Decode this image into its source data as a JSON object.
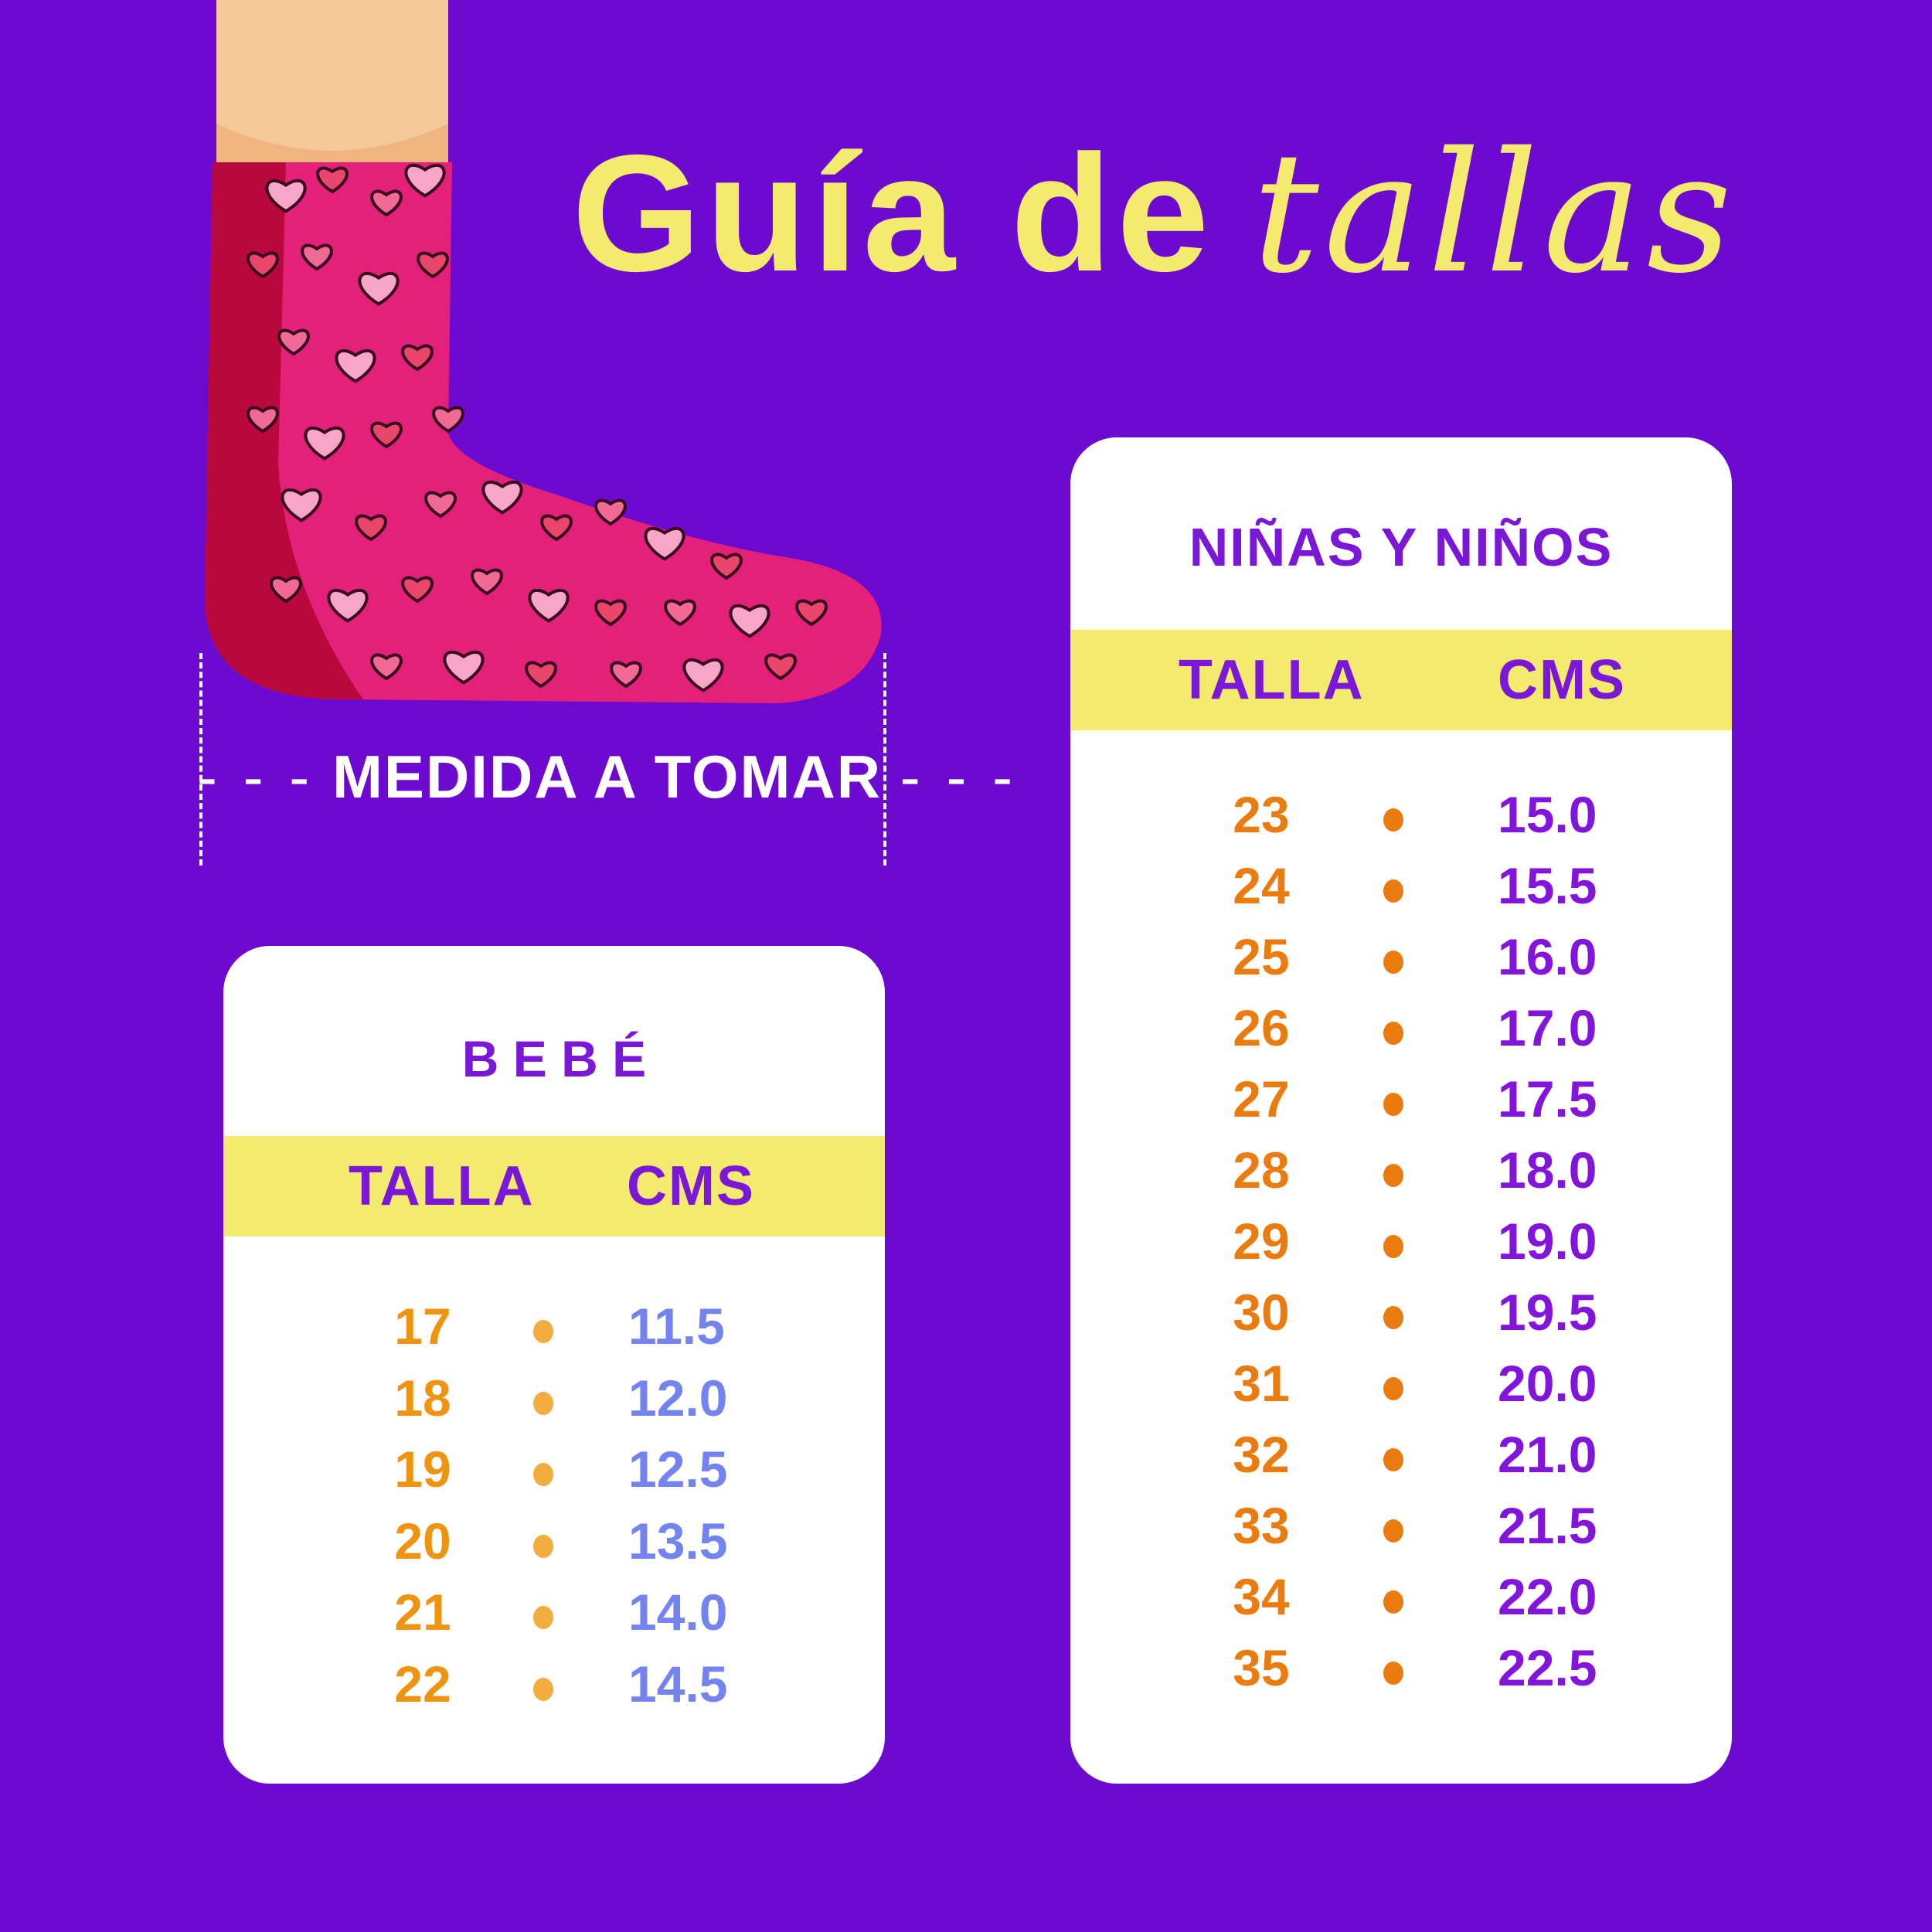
{
  "title": {
    "part1": "Guía de",
    "part2": "tallas"
  },
  "measure_label": "MEDIDA A TOMAR",
  "colors": {
    "background": "#6c0bcf",
    "accent_yellow": "#f3ea6f",
    "heading_purple": "#7b17d6",
    "orange": "#ea7c0f",
    "baby_orange": "#ef9410",
    "baby_dot": "#f2ad3e",
    "baby_blue": "#7384f0",
    "kids_purple": "#8314dc"
  },
  "bebe": {
    "title": "B E B É",
    "header": {
      "talla": "TALLA",
      "cms": "CMS"
    },
    "rows": [
      {
        "talla": "17",
        "cms": "11.5"
      },
      {
        "talla": "18",
        "cms": "12.0"
      },
      {
        "talla": "19",
        "cms": "12.5"
      },
      {
        "talla": "20",
        "cms": "13.5"
      },
      {
        "talla": "21",
        "cms": "14.0"
      },
      {
        "talla": "22",
        "cms": "14.5"
      }
    ]
  },
  "kids": {
    "title": "NIÑAS Y NIÑOS",
    "header": {
      "talla": "TALLA",
      "cms": "CMS"
    },
    "rows": [
      {
        "talla": "23",
        "cms": "15.0"
      },
      {
        "talla": "24",
        "cms": "15.5"
      },
      {
        "talla": "25",
        "cms": "16.0"
      },
      {
        "talla": "26",
        "cms": "17.0"
      },
      {
        "talla": "27",
        "cms": "17.5"
      },
      {
        "talla": "28",
        "cms": "18.0"
      },
      {
        "talla": "29",
        "cms": "19.0"
      },
      {
        "talla": "30",
        "cms": "19.5"
      },
      {
        "talla": "31",
        "cms": "20.0"
      },
      {
        "talla": "32",
        "cms": "21.0"
      },
      {
        "talla": "33",
        "cms": "21.5"
      },
      {
        "talla": "34",
        "cms": "22.0"
      },
      {
        "talla": "35",
        "cms": "22.5"
      }
    ]
  }
}
